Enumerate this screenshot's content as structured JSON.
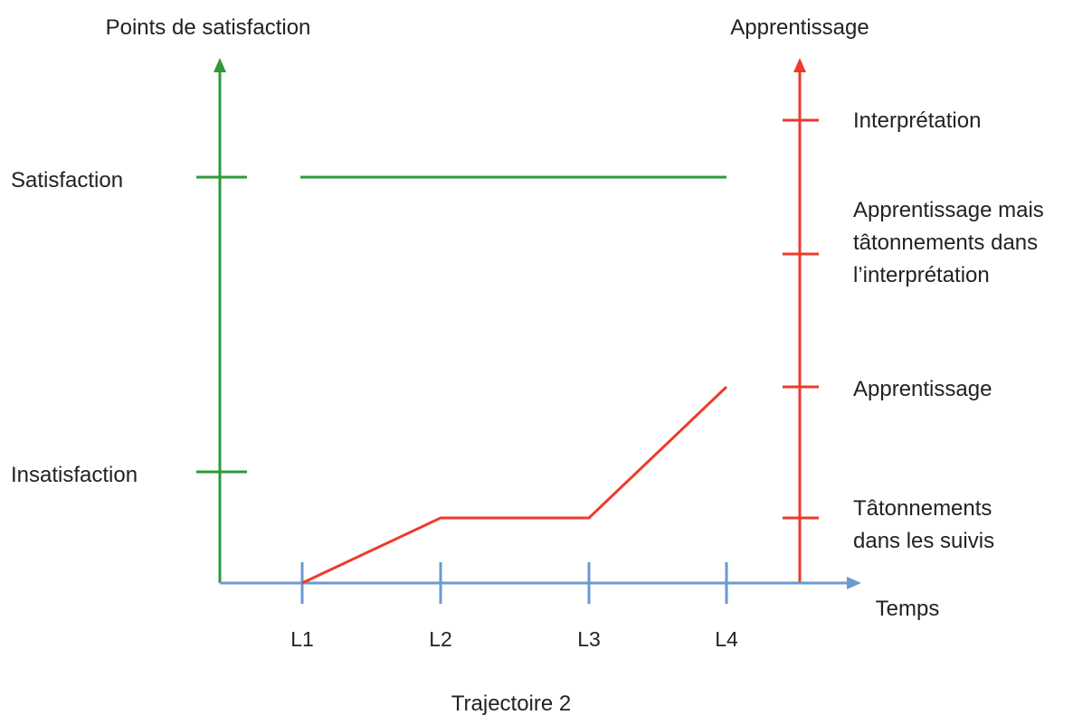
{
  "chart_data": {
    "type": "line",
    "title": "Trajectoire 2",
    "xlabel": "Temps",
    "y_left_label": "Points de satisfaction",
    "y_right_label": "Apprentissage",
    "categories": [
      "L1",
      "L2",
      "L3",
      "L4"
    ],
    "y_left_levels": [
      "Insatisfaction",
      "Satisfaction"
    ],
    "y_right_levels": [
      "Tâtonnements dans les suivis",
      "Apprentissage",
      "Apprentissage mais tâtonnements dans l’interprétation",
      "Interprétation"
    ],
    "y_right_levels_lines": [
      [
        "Tâtonnements",
        "dans les suivis"
      ],
      [
        "Apprentissage"
      ],
      [
        "Apprentissage mais",
        "tâtonnements dans",
        "l’interprétation"
      ],
      [
        "Interprétation"
      ]
    ],
    "series": [
      {
        "axis": "left",
        "color": "#2e9a3a",
        "points": [
          {
            "x": "L1",
            "y": "Satisfaction"
          },
          {
            "x": "L4",
            "y": "Satisfaction"
          }
        ]
      },
      {
        "axis": "right",
        "color": "#ee3a2c",
        "points": [
          {
            "x": "L1",
            "y": 0
          },
          {
            "x": "L2",
            "y": "Tâtonnements dans les suivis"
          },
          {
            "x": "L3",
            "y": "Tâtonnements dans les suivis"
          },
          {
            "x": "L4",
            "y": "Apprentissage"
          }
        ]
      }
    ],
    "colors": {
      "left_axis": "#2e9a3a",
      "right_axis": "#ee3a2c",
      "time_axis": "#6a9ad0"
    }
  }
}
